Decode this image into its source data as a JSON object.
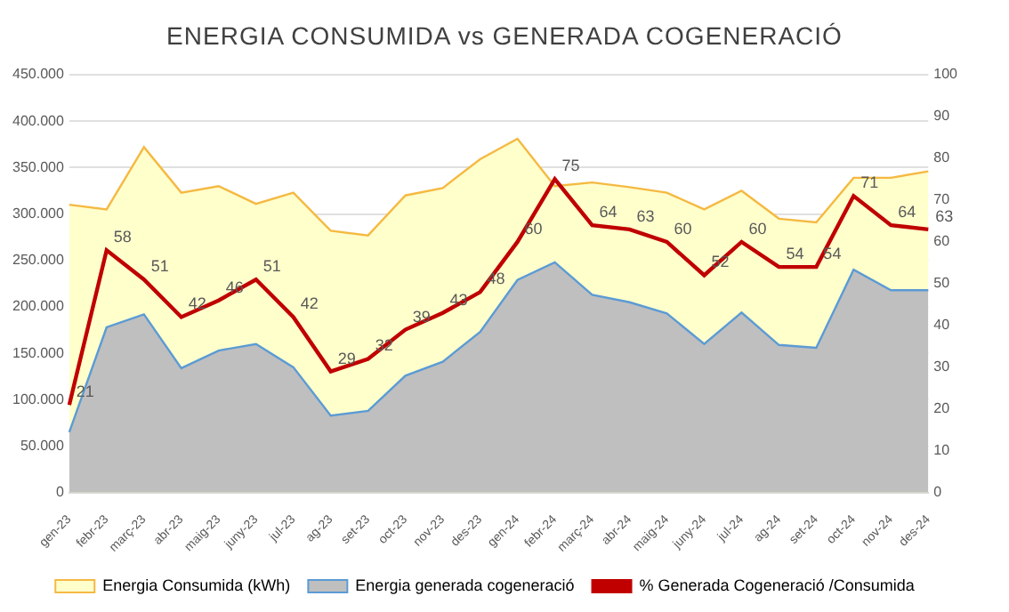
{
  "chart_data": {
    "type": "area",
    "title": "ENERGIA CONSUMIDA vs GENERADA COGENERACIÓ",
    "categories": [
      "gen-23",
      "febr-23",
      "març-23",
      "abr-23",
      "maig-23",
      "juny-23",
      "jul-23",
      "ag-23",
      "set-23",
      "oct-23",
      "nov-23",
      "des-23",
      "gen-24",
      "febr-24",
      "març-24",
      "abr-24",
      "maig-24",
      "juny-24",
      "jul-24",
      "ag-24",
      "set-24",
      "oct-24",
      "nov-24",
      "des-24"
    ],
    "series": [
      {
        "name": "Energia Consumida (kWh)",
        "type": "area",
        "color": "#ffffcc",
        "values": [
          310000,
          305000,
          372000,
          323000,
          330000,
          311000,
          323000,
          282000,
          277000,
          320000,
          328000,
          359000,
          381000,
          330000,
          334000,
          329000,
          323000,
          305000,
          325000,
          295000,
          291000,
          339000,
          339000,
          346000
        ]
      },
      {
        "name": "Energia generada cogeneració",
        "type": "area",
        "color": "#bfbfbf",
        "values": [
          65000,
          178000,
          192000,
          134000,
          153000,
          160000,
          135000,
          83000,
          88000,
          126000,
          141000,
          173000,
          229000,
          248000,
          213000,
          205000,
          193000,
          160000,
          194000,
          159000,
          156000,
          240000,
          218000,
          218000
        ]
      },
      {
        "name": "% Generada Cogeneració /Consumida",
        "type": "line",
        "axis": "y2",
        "color": "#c00000",
        "data_labels": true,
        "values": [
          21,
          58,
          51,
          42,
          46,
          51,
          42,
          29,
          32,
          39,
          43,
          48,
          60,
          75,
          64,
          63,
          60,
          52,
          60,
          54,
          54,
          71,
          64,
          63
        ]
      }
    ],
    "ylim": [
      0,
      450000
    ],
    "yticks": [
      {
        "value": 0,
        "label": "0"
      },
      {
        "value": 50000,
        "label": "50.000"
      },
      {
        "value": 100000,
        "label": "100.000"
      },
      {
        "value": 150000,
        "label": "150.000"
      },
      {
        "value": 200000,
        "label": "200.000"
      },
      {
        "value": 250000,
        "label": "250.000"
      },
      {
        "value": 300000,
        "label": "300.000"
      },
      {
        "value": 350000,
        "label": "350.000"
      },
      {
        "value": 400000,
        "label": "400.000"
      },
      {
        "value": 450000,
        "label": "450.000"
      }
    ],
    "y2lim": [
      0,
      100
    ],
    "y2ticks": [
      0,
      10,
      20,
      30,
      40,
      50,
      60,
      70,
      80,
      90,
      100
    ],
    "grid": "y",
    "legend": "bottom",
    "marker": "none"
  }
}
